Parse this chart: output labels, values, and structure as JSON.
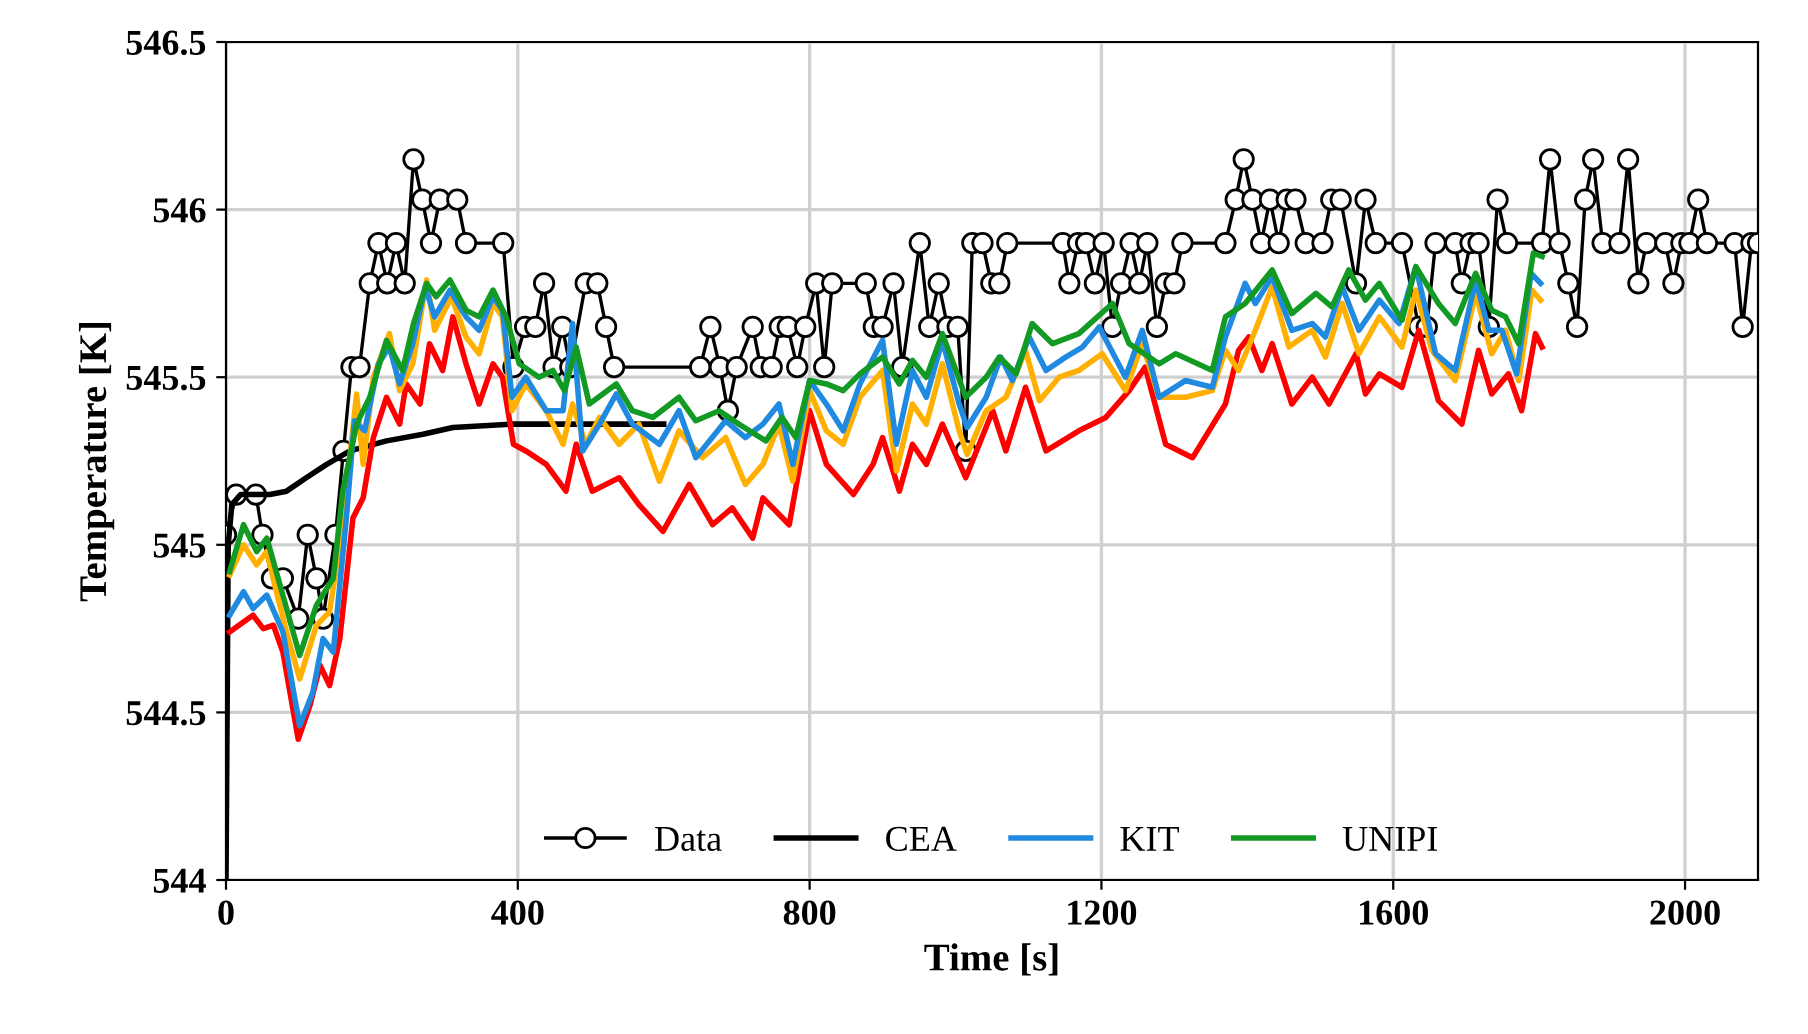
{
  "chart_data": {
    "type": "line",
    "xlabel": "Time [s]",
    "ylabel": "Temperature [K]",
    "xlim": [
      0,
      2100
    ],
    "ylim": [
      544,
      546.5
    ],
    "xticks": [
      0,
      400,
      800,
      1200,
      1600,
      2000
    ],
    "yticks": [
      544,
      544.5,
      545,
      545.5,
      546,
      546.5
    ],
    "grid": true,
    "legend": "bottom",
    "series": [
      {
        "name": "Data",
        "color": "#000000",
        "marker": "circle",
        "x": [
          0,
          14,
          41,
          50,
          63,
          78,
          99,
          112,
          124,
          133,
          150,
          161,
          172,
          183,
          197,
          209,
          221,
          233,
          245,
          257,
          269,
          281,
          293,
          317,
          329,
          380,
          394,
          410,
          424,
          436,
          449,
          461,
          472,
          493,
          509,
          521,
          532,
          650,
          664,
          677,
          688,
          700,
          722,
          733,
          748,
          759,
          770,
          783,
          794,
          809,
          820,
          831,
          877,
          888,
          900,
          915,
          927,
          951,
          964,
          977,
          989,
          1003,
          1014,
          1023,
          1037,
          1049,
          1060,
          1071,
          1147,
          1156,
          1168,
          1179,
          1191,
          1203,
          1215,
          1227,
          1240,
          1252,
          1263,
          1276,
          1288,
          1300,
          1311,
          1370,
          1384,
          1395,
          1407,
          1419,
          1431,
          1443,
          1454,
          1466,
          1480,
          1503,
          1515,
          1528,
          1549,
          1562,
          1576,
          1612,
          1635,
          1646,
          1658,
          1685,
          1694,
          1706,
          1717,
          1731,
          1743,
          1756,
          1804,
          1815,
          1828,
          1840,
          1852,
          1863,
          1874,
          1887,
          1910,
          1922,
          1936,
          1947,
          1973,
          1984,
          1995,
          2006,
          2018,
          2030,
          2068,
          2079,
          2091,
          2100
        ],
        "values": [
          545.03,
          545.15,
          545.15,
          545.03,
          544.9,
          544.9,
          544.78,
          545.03,
          544.9,
          544.78,
          545.03,
          545.28,
          545.53,
          545.53,
          545.78,
          545.9,
          545.78,
          545.9,
          545.78,
          546.15,
          546.03,
          545.9,
          546.03,
          546.03,
          545.9,
          545.9,
          545.53,
          545.65,
          545.65,
          545.78,
          545.53,
          545.65,
          545.53,
          545.78,
          545.78,
          545.65,
          545.53,
          545.53,
          545.65,
          545.53,
          545.4,
          545.53,
          545.65,
          545.53,
          545.53,
          545.65,
          545.65,
          545.53,
          545.65,
          545.78,
          545.53,
          545.78,
          545.78,
          545.65,
          545.65,
          545.78,
          545.53,
          545.9,
          545.65,
          545.78,
          545.65,
          545.65,
          545.28,
          545.9,
          545.9,
          545.78,
          545.78,
          545.9,
          545.9,
          545.78,
          545.9,
          545.9,
          545.78,
          545.9,
          545.65,
          545.78,
          545.9,
          545.78,
          545.9,
          545.65,
          545.78,
          545.78,
          545.9,
          545.9,
          546.03,
          546.15,
          546.03,
          545.9,
          546.03,
          545.9,
          546.03,
          546.03,
          545.9,
          545.9,
          546.03,
          546.03,
          545.78,
          546.03,
          545.9,
          545.9,
          545.65,
          545.65,
          545.9,
          545.9,
          545.78,
          545.9,
          545.9,
          545.65,
          546.03,
          545.9,
          545.9,
          546.15,
          545.9,
          545.78,
          545.65,
          546.03,
          546.15,
          545.9,
          545.9,
          546.15,
          545.78,
          545.9,
          545.9,
          545.78,
          545.9,
          545.9,
          546.03,
          545.9,
          545.9,
          545.65,
          545.9,
          545.9
        ]
      },
      {
        "name": "CEA",
        "color": "#000000",
        "x": [
          0,
          3,
          8,
          20,
          60,
          83,
          110,
          138,
          170,
          220,
          270,
          311,
          394,
          476,
          600
        ],
        "values": [
          544,
          545.0,
          545.12,
          545.15,
          545.15,
          545.16,
          545.2,
          545.24,
          545.28,
          545.31,
          545.33,
          545.35,
          545.36,
          545.36,
          545.36
        ]
      },
      {
        "color": "#ff0000",
        "x": [
          5,
          24,
          37,
          51,
          65,
          78,
          99,
          115,
          129,
          142,
          156,
          174,
          188,
          202,
          220,
          238,
          247,
          266,
          279,
          297,
          311,
          329,
          347,
          366,
          379,
          394,
          411,
          439,
          466,
          480,
          502,
          539,
          566,
          599,
          635,
          667,
          694,
          722,
          736,
          772,
          800,
          823,
          860,
          887,
          900,
          923,
          941,
          960,
          982,
          1014,
          1051,
          1069,
          1096,
          1124,
          1169,
          1206,
          1238,
          1260,
          1288,
          1325,
          1370,
          1388,
          1402,
          1420,
          1434,
          1461,
          1489,
          1512,
          1549,
          1562,
          1581,
          1612,
          1635,
          1662,
          1694,
          1717,
          1735,
          1758,
          1776,
          1795,
          1804
        ],
        "values": [
          544.74,
          544.77,
          544.79,
          544.75,
          544.76,
          544.68,
          544.42,
          544.52,
          544.64,
          544.58,
          544.72,
          545.08,
          545.14,
          545.32,
          545.44,
          545.36,
          545.48,
          545.42,
          545.6,
          545.52,
          545.68,
          545.54,
          545.42,
          545.54,
          545.5,
          545.3,
          545.28,
          545.24,
          545.16,
          545.3,
          545.16,
          545.2,
          545.12,
          545.04,
          545.18,
          545.06,
          545.11,
          545.02,
          545.14,
          545.06,
          545.4,
          545.24,
          545.15,
          545.24,
          545.32,
          545.16,
          545.3,
          545.24,
          545.36,
          545.2,
          545.4,
          545.28,
          545.47,
          545.28,
          545.34,
          545.38,
          545.46,
          545.53,
          545.3,
          545.26,
          545.42,
          545.58,
          545.62,
          545.52,
          545.6,
          545.42,
          545.5,
          545.42,
          545.57,
          545.45,
          545.51,
          545.47,
          545.64,
          545.43,
          545.36,
          545.58,
          545.45,
          545.51,
          545.4,
          545.63,
          545.59
        ]
      },
      {
        "color": "#ffb000",
        "x": [
          5,
          24,
          42,
          56,
          69,
          83,
          101,
          124,
          142,
          160,
          179,
          188,
          202,
          224,
          238,
          256,
          275,
          286,
          309,
          329,
          347,
          366,
          379,
          392,
          411,
          439,
          462,
          475,
          493,
          512,
          539,
          566,
          594,
          621,
          653,
          685,
          712,
          736,
          758,
          777,
          800,
          823,
          846,
          869,
          900,
          919,
          941,
          960,
          982,
          1005,
          1016,
          1042,
          1069,
          1096,
          1115,
          1142,
          1169,
          1201,
          1233,
          1256,
          1279,
          1315,
          1352,
          1370,
          1388,
          1411,
          1434,
          1457,
          1489,
          1507,
          1530,
          1553,
          1581,
          1612,
          1631,
          1653,
          1685,
          1713,
          1735,
          1754,
          1772,
          1790,
          1802
        ],
        "values": [
          544.91,
          545.0,
          544.94,
          544.98,
          544.86,
          544.74,
          544.6,
          544.76,
          544.8,
          545.06,
          545.45,
          545.24,
          545.5,
          545.63,
          545.46,
          545.54,
          545.79,
          545.64,
          545.74,
          545.62,
          545.57,
          545.72,
          545.68,
          545.4,
          545.48,
          545.4,
          545.3,
          545.42,
          545.3,
          545.38,
          545.3,
          545.36,
          545.19,
          545.34,
          545.26,
          545.32,
          545.18,
          545.24,
          545.36,
          545.19,
          545.46,
          545.34,
          545.3,
          545.44,
          545.52,
          545.22,
          545.42,
          545.36,
          545.54,
          545.34,
          545.27,
          545.4,
          545.44,
          545.58,
          545.43,
          545.5,
          545.52,
          545.57,
          545.46,
          545.6,
          545.44,
          545.44,
          545.46,
          545.58,
          545.52,
          545.64,
          545.77,
          545.59,
          545.64,
          545.56,
          545.72,
          545.57,
          545.68,
          545.59,
          545.76,
          545.58,
          545.49,
          545.75,
          545.57,
          545.64,
          545.49,
          545.76,
          545.73
        ]
      },
      {
        "name": "KIT",
        "color": "#1f8ae0",
        "x": [
          5,
          24,
          37,
          56,
          78,
          101,
          119,
          133,
          147,
          165,
          176,
          190,
          209,
          224,
          238,
          256,
          273,
          286,
          307,
          329,
          347,
          366,
          379,
          392,
          411,
          439,
          462,
          475,
          489,
          512,
          535,
          557,
          594,
          621,
          644,
          685,
          712,
          736,
          758,
          777,
          800,
          823,
          846,
          869,
          900,
          919,
          941,
          960,
          982,
          1005,
          1016,
          1042,
          1062,
          1078,
          1101,
          1124,
          1151,
          1174,
          1197,
          1233,
          1256,
          1279,
          1315,
          1352,
          1370,
          1397,
          1411,
          1434,
          1461,
          1489,
          1507,
          1530,
          1553,
          1581,
          1608,
          1631,
          1658,
          1685,
          1713,
          1731,
          1749,
          1769,
          1789,
          1802
        ],
        "values": [
          544.79,
          544.86,
          544.81,
          544.85,
          544.74,
          544.46,
          544.56,
          544.72,
          544.68,
          545.08,
          545.37,
          545.34,
          545.54,
          545.59,
          545.48,
          545.6,
          545.77,
          545.68,
          545.76,
          545.68,
          545.64,
          545.74,
          545.7,
          545.44,
          545.5,
          545.4,
          545.4,
          545.66,
          545.28,
          545.36,
          545.45,
          545.36,
          545.3,
          545.4,
          545.26,
          545.37,
          545.32,
          545.36,
          545.42,
          545.24,
          545.49,
          545.42,
          545.34,
          545.48,
          545.61,
          545.3,
          545.52,
          545.44,
          545.61,
          545.42,
          545.35,
          545.44,
          545.56,
          545.49,
          545.62,
          545.52,
          545.56,
          545.59,
          545.65,
          545.5,
          545.64,
          545.44,
          545.49,
          545.47,
          545.62,
          545.78,
          545.72,
          545.8,
          545.64,
          545.66,
          545.62,
          545.77,
          545.64,
          545.73,
          545.66,
          545.83,
          545.57,
          545.52,
          545.79,
          545.64,
          545.64,
          545.51,
          545.81,
          545.78
        ]
      },
      {
        "name": "UNIPI",
        "color": "#129a24",
        "x": [
          5,
          24,
          42,
          56,
          74,
          101,
          124,
          147,
          160,
          179,
          197,
          220,
          242,
          257,
          275,
          288,
          307,
          329,
          347,
          366,
          384,
          402,
          429,
          448,
          464,
          480,
          498,
          535,
          557,
          585,
          621,
          644,
          676,
          703,
          740,
          762,
          781,
          800,
          823,
          846,
          869,
          900,
          923,
          941,
          960,
          982,
          1014,
          1042,
          1060,
          1083,
          1105,
          1133,
          1169,
          1215,
          1238,
          1279,
          1302,
          1352,
          1370,
          1397,
          1434,
          1461,
          1494,
          1516,
          1539,
          1562,
          1581,
          1612,
          1631,
          1662,
          1685,
          1713,
          1735,
          1754,
          1772,
          1792,
          1804
        ],
        "values": [
          544.92,
          545.06,
          544.98,
          545.02,
          544.88,
          544.67,
          544.82,
          544.9,
          545.16,
          545.36,
          545.44,
          545.61,
          545.52,
          545.66,
          545.78,
          545.74,
          545.79,
          545.7,
          545.68,
          545.76,
          545.68,
          545.54,
          545.5,
          545.52,
          545.46,
          545.59,
          545.42,
          545.48,
          545.4,
          545.38,
          545.44,
          545.37,
          545.4,
          545.36,
          545.31,
          545.38,
          545.32,
          545.49,
          545.48,
          545.46,
          545.51,
          545.56,
          545.48,
          545.55,
          545.5,
          545.63,
          545.44,
          545.5,
          545.56,
          545.51,
          545.66,
          545.6,
          545.63,
          545.72,
          545.6,
          545.54,
          545.57,
          545.52,
          545.68,
          545.72,
          545.82,
          545.69,
          545.75,
          545.71,
          545.82,
          545.73,
          545.78,
          545.67,
          545.83,
          545.72,
          545.66,
          545.81,
          545.7,
          545.68,
          545.6,
          545.87,
          545.86
        ]
      }
    ]
  }
}
